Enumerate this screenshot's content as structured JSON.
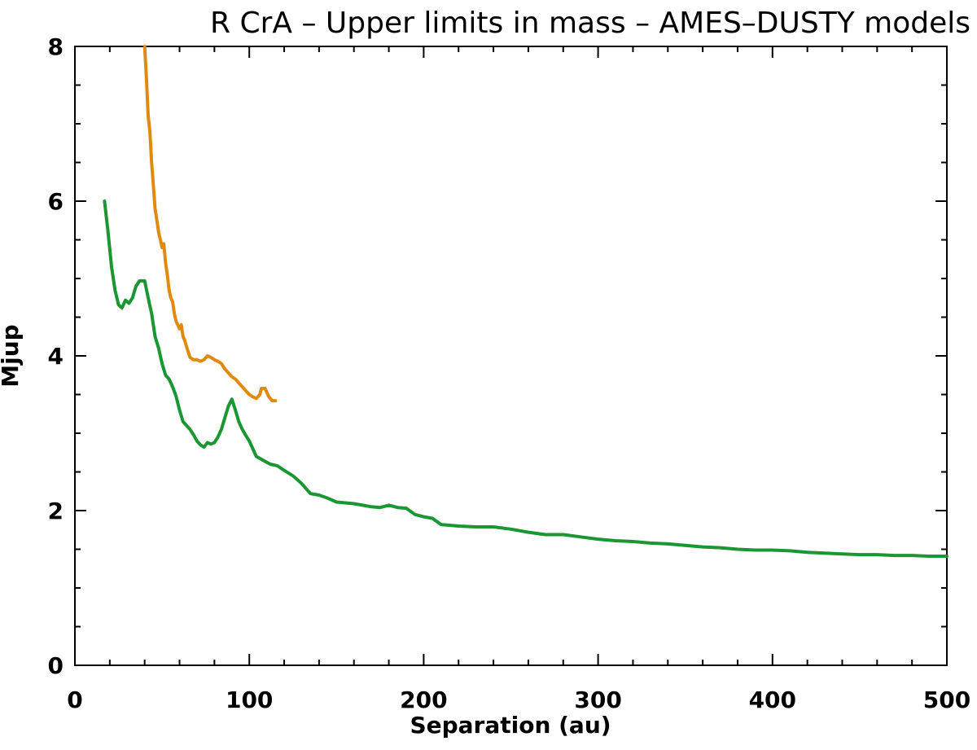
{
  "chart_data": {
    "type": "line",
    "title": "R CrA – Upper limits in mass – AMES–DUSTY models",
    "xlabel": "Separation (au)",
    "ylabel": "Mjup",
    "xlim": [
      0,
      500
    ],
    "ylim": [
      0,
      8
    ],
    "x_ticks": [
      "0",
      "100",
      "200",
      "300",
      "400",
      "500"
    ],
    "y_ticks": [
      "0",
      "2",
      "4",
      "6",
      "8"
    ],
    "grid": false,
    "legend": "none",
    "series": [
      {
        "color": "#1a9632",
        "points": [
          [
            17,
            6.0
          ],
          [
            19,
            5.6
          ],
          [
            21,
            5.15
          ],
          [
            23,
            4.85
          ],
          [
            25,
            4.66
          ],
          [
            27,
            4.62
          ],
          [
            29,
            4.72
          ],
          [
            31,
            4.68
          ],
          [
            33,
            4.75
          ],
          [
            35,
            4.9
          ],
          [
            37,
            4.97
          ],
          [
            40,
            4.97
          ],
          [
            42,
            4.75
          ],
          [
            44,
            4.55
          ],
          [
            46,
            4.25
          ],
          [
            48,
            4.1
          ],
          [
            50,
            3.9
          ],
          [
            52,
            3.75
          ],
          [
            54,
            3.7
          ],
          [
            56,
            3.6
          ],
          [
            58,
            3.48
          ],
          [
            60,
            3.3
          ],
          [
            62,
            3.15
          ],
          [
            64,
            3.1
          ],
          [
            66,
            3.05
          ],
          [
            68,
            2.98
          ],
          [
            70,
            2.9
          ],
          [
            72,
            2.85
          ],
          [
            74,
            2.82
          ],
          [
            76,
            2.88
          ],
          [
            78,
            2.86
          ],
          [
            80,
            2.88
          ],
          [
            82,
            2.95
          ],
          [
            84,
            3.05
          ],
          [
            86,
            3.2
          ],
          [
            88,
            3.35
          ],
          [
            90,
            3.44
          ],
          [
            92,
            3.3
          ],
          [
            94,
            3.15
          ],
          [
            96,
            3.05
          ],
          [
            98,
            2.97
          ],
          [
            100,
            2.9
          ],
          [
            102,
            2.8
          ],
          [
            104,
            2.7
          ],
          [
            108,
            2.65
          ],
          [
            112,
            2.6
          ],
          [
            116,
            2.58
          ],
          [
            120,
            2.52
          ],
          [
            125,
            2.45
          ],
          [
            130,
            2.35
          ],
          [
            135,
            2.22
          ],
          [
            140,
            2.2
          ],
          [
            145,
            2.16
          ],
          [
            150,
            2.11
          ],
          [
            155,
            2.1
          ],
          [
            160,
            2.09
          ],
          [
            165,
            2.07
          ],
          [
            170,
            2.05
          ],
          [
            175,
            2.04
          ],
          [
            180,
            2.07
          ],
          [
            185,
            2.04
          ],
          [
            190,
            2.03
          ],
          [
            195,
            1.95
          ],
          [
            200,
            1.92
          ],
          [
            205,
            1.9
          ],
          [
            210,
            1.82
          ],
          [
            220,
            1.8
          ],
          [
            230,
            1.79
          ],
          [
            240,
            1.79
          ],
          [
            250,
            1.76
          ],
          [
            260,
            1.72
          ],
          [
            270,
            1.69
          ],
          [
            280,
            1.69
          ],
          [
            290,
            1.66
          ],
          [
            300,
            1.63
          ],
          [
            310,
            1.61
          ],
          [
            320,
            1.6
          ],
          [
            330,
            1.58
          ],
          [
            340,
            1.57
          ],
          [
            350,
            1.55
          ],
          [
            360,
            1.53
          ],
          [
            370,
            1.52
          ],
          [
            380,
            1.5
          ],
          [
            390,
            1.49
          ],
          [
            400,
            1.49
          ],
          [
            410,
            1.48
          ],
          [
            420,
            1.46
          ],
          [
            430,
            1.45
          ],
          [
            440,
            1.44
          ],
          [
            450,
            1.43
          ],
          [
            460,
            1.43
          ],
          [
            470,
            1.42
          ],
          [
            480,
            1.42
          ],
          [
            490,
            1.41
          ],
          [
            500,
            1.41
          ]
        ]
      },
      {
        "color": "#e08a12",
        "points": [
          [
            40,
            8.0
          ],
          [
            41,
            7.6
          ],
          [
            42,
            7.1
          ],
          [
            43,
            6.9
          ],
          [
            44,
            6.5
          ],
          [
            45,
            6.2
          ],
          [
            46,
            5.9
          ],
          [
            47,
            5.75
          ],
          [
            48,
            5.6
          ],
          [
            49,
            5.5
          ],
          [
            50,
            5.4
          ],
          [
            51,
            5.45
          ],
          [
            52,
            5.2
          ],
          [
            53,
            5.05
          ],
          [
            54,
            4.85
          ],
          [
            55,
            4.75
          ],
          [
            56,
            4.7
          ],
          [
            57,
            4.55
          ],
          [
            58,
            4.45
          ],
          [
            59,
            4.4
          ],
          [
            60,
            4.35
          ],
          [
            61,
            4.4
          ],
          [
            62,
            4.25
          ],
          [
            63,
            4.2
          ],
          [
            64,
            4.12
          ],
          [
            65,
            4.05
          ],
          [
            66,
            3.98
          ],
          [
            68,
            3.95
          ],
          [
            70,
            3.95
          ],
          [
            72,
            3.93
          ],
          [
            74,
            3.95
          ],
          [
            76,
            4.0
          ],
          [
            78,
            3.98
          ],
          [
            80,
            3.95
          ],
          [
            82,
            3.93
          ],
          [
            84,
            3.9
          ],
          [
            86,
            3.83
          ],
          [
            88,
            3.78
          ],
          [
            90,
            3.73
          ],
          [
            92,
            3.7
          ],
          [
            94,
            3.65
          ],
          [
            96,
            3.6
          ],
          [
            98,
            3.55
          ],
          [
            100,
            3.5
          ],
          [
            102,
            3.47
          ],
          [
            104,
            3.45
          ],
          [
            106,
            3.5
          ],
          [
            107,
            3.58
          ],
          [
            109,
            3.58
          ],
          [
            111,
            3.48
          ],
          [
            113,
            3.42
          ],
          [
            115,
            3.42
          ]
        ]
      }
    ]
  }
}
